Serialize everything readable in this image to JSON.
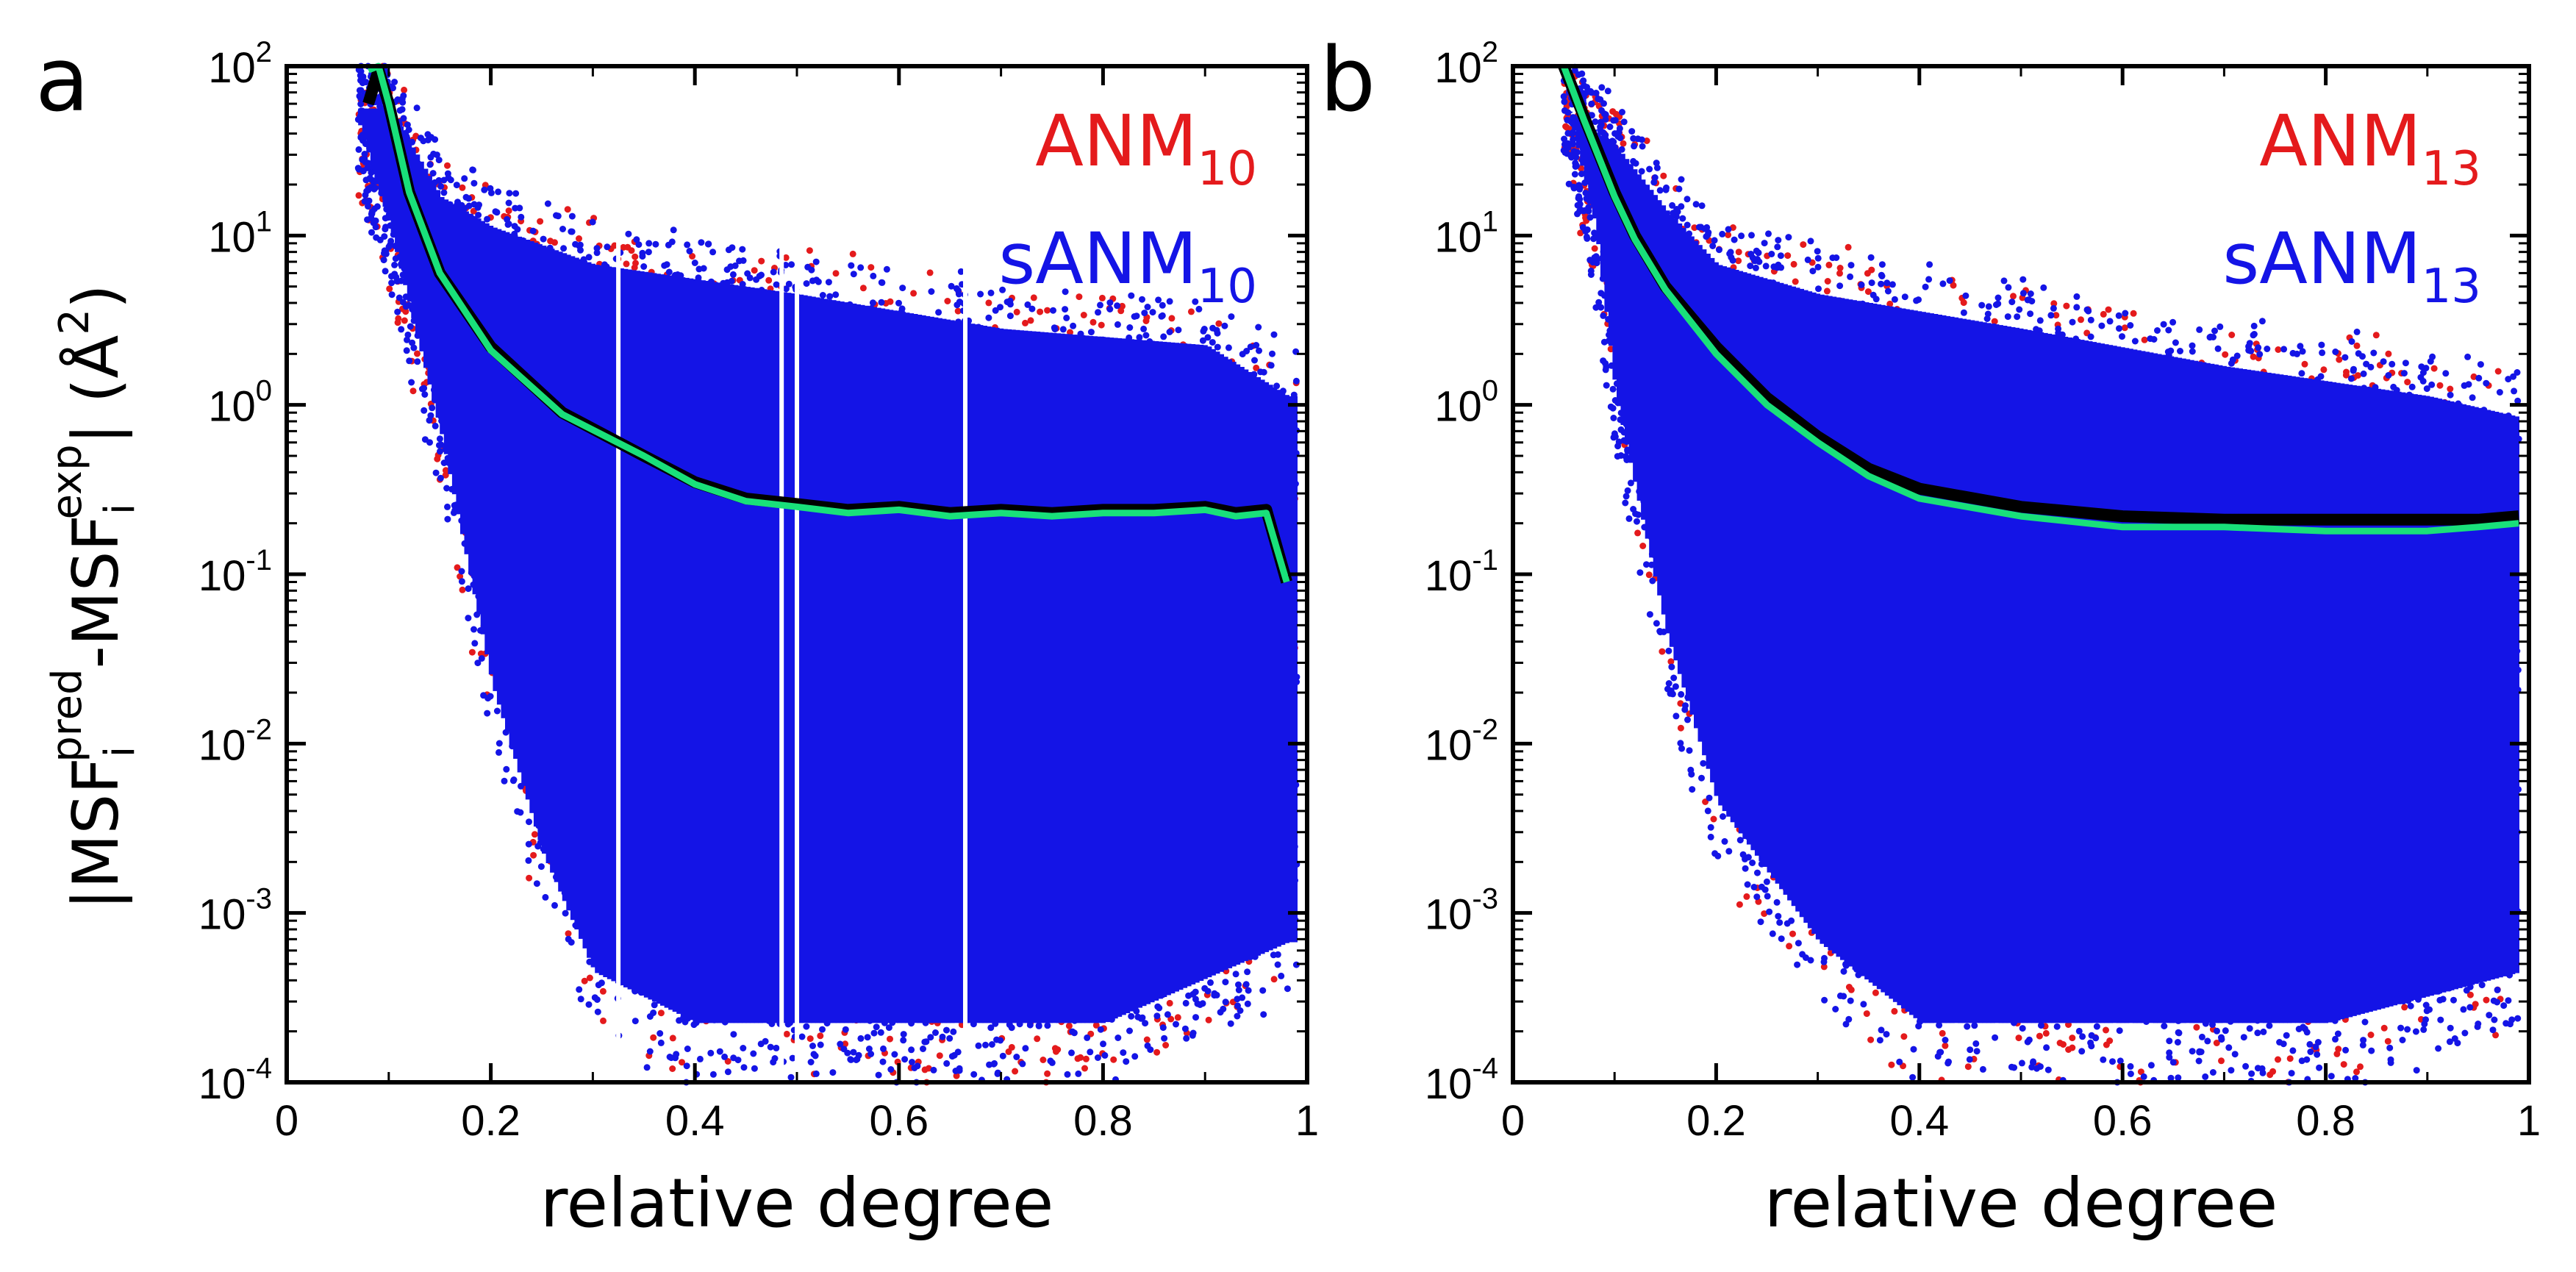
{
  "figure": {
    "ylabel": "|MSF_i^pred - MSF_i^exp| (Å²)",
    "ylabel_parts": {
      "bar_open": "|MSF",
      "sub_i1": "i",
      "sup_pred": "pred",
      "dash": "-MSF",
      "sub_i2": "i",
      "sup_exp": "exp",
      "bar_close": "| (Å",
      "sup_2": "2",
      "close": ")"
    },
    "colors": {
      "anm": "#e41a1c",
      "sanm": "#1414e6",
      "anm_mean": "#000000",
      "sanm_mean": "#19e07a"
    }
  },
  "chart_data": [
    {
      "type": "scatter",
      "panel": "a",
      "title": "",
      "xlabel": "relative degree",
      "ylabel": "|MSF_i^pred - MSF_i^exp| (Å²)",
      "xlim": [
        0,
        1
      ],
      "ylim": [
        0.0001,
        100
      ],
      "yscale": "log",
      "x_ticks": [
        "0",
        "0.2",
        "0.4",
        "0.6",
        "0.8",
        "1"
      ],
      "y_ticks": [
        {
          "base": "10",
          "exp": "2"
        },
        {
          "base": "10",
          "exp": "1"
        },
        {
          "base": "10",
          "exp": "0"
        },
        {
          "base": "10",
          "exp": "-1"
        },
        {
          "base": "10",
          "exp": "-2"
        },
        {
          "base": "10",
          "exp": "-3"
        },
        {
          "base": "10",
          "exp": "-4"
        }
      ],
      "legend_position": "top-right",
      "legend": [
        {
          "label": "ANM",
          "sub": "10",
          "color": "#e41a1c"
        },
        {
          "label": "sANM",
          "sub": "10",
          "color": "#1414e6"
        }
      ],
      "scatter_model": {
        "x_range": [
          0.07,
          0.99
        ],
        "upper_envelope": [
          [
            0.07,
            100
          ],
          [
            0.1,
            100
          ],
          [
            0.15,
            30
          ],
          [
            0.2,
            20
          ],
          [
            0.3,
            12
          ],
          [
            0.5,
            8
          ],
          [
            0.7,
            5
          ],
          [
            0.9,
            4
          ],
          [
            0.98,
            2
          ]
        ],
        "lower_envelope": [
          [
            0.07,
            20
          ],
          [
            0.1,
            5
          ],
          [
            0.15,
            0.3
          ],
          [
            0.2,
            0.01
          ],
          [
            0.25,
            0.001
          ],
          [
            0.3,
            0.0002
          ],
          [
            0.4,
            0.0001
          ],
          [
            0.6,
            0.0001
          ],
          [
            0.8,
            0.0001
          ],
          [
            0.98,
            0.0003
          ]
        ],
        "gaps_x": [
          0.325,
          0.485,
          0.5,
          0.665
        ]
      },
      "series": [
        {
          "name": "ANM_10 mean",
          "color": "#000000",
          "x": [
            0.08,
            0.09,
            0.1,
            0.12,
            0.15,
            0.2,
            0.27,
            0.35,
            0.4,
            0.45,
            0.5,
            0.55,
            0.6,
            0.65,
            0.7,
            0.75,
            0.8,
            0.85,
            0.9,
            0.93,
            0.96,
            0.98
          ],
          "values": [
            60,
            95,
            60,
            18,
            6,
            2.2,
            0.9,
            0.5,
            0.35,
            0.28,
            0.26,
            0.24,
            0.25,
            0.23,
            0.24,
            0.23,
            0.24,
            0.24,
            0.25,
            0.23,
            0.24,
            0.09
          ]
        },
        {
          "name": "sANM_10 mean",
          "color": "#19e07a",
          "x": [
            0.08,
            0.09,
            0.1,
            0.12,
            0.15,
            0.2,
            0.27,
            0.35,
            0.4,
            0.45,
            0.5,
            0.55,
            0.6,
            0.65,
            0.7,
            0.75,
            0.8,
            0.85,
            0.9,
            0.93,
            0.96,
            0.98
          ],
          "values": [
            95,
            100,
            60,
            18,
            6,
            2.1,
            0.88,
            0.5,
            0.34,
            0.27,
            0.25,
            0.23,
            0.24,
            0.22,
            0.23,
            0.22,
            0.23,
            0.23,
            0.24,
            0.22,
            0.23,
            0.09
          ]
        }
      ]
    },
    {
      "type": "scatter",
      "panel": "b",
      "title": "",
      "xlabel": "relative degree",
      "ylabel": "",
      "xlim": [
        0,
        1
      ],
      "ylim": [
        0.0001,
        100
      ],
      "yscale": "log",
      "x_ticks": [
        "0",
        "0.2",
        "0.4",
        "0.6",
        "0.8",
        "1"
      ],
      "y_ticks": [
        {
          "base": "10",
          "exp": "2"
        },
        {
          "base": "10",
          "exp": "1"
        },
        {
          "base": "10",
          "exp": "0"
        },
        {
          "base": "10",
          "exp": "-1"
        },
        {
          "base": "10",
          "exp": "-2"
        },
        {
          "base": "10",
          "exp": "-3"
        },
        {
          "base": "10",
          "exp": "-4"
        }
      ],
      "legend_position": "top-right",
      "legend": [
        {
          "label": "ANM",
          "sub": "13",
          "color": "#e41a1c"
        },
        {
          "label": "sANM",
          "sub": "13",
          "color": "#1414e6"
        }
      ],
      "scatter_model": {
        "x_range": [
          0.05,
          0.99
        ],
        "upper_envelope": [
          [
            0.05,
            100
          ],
          [
            0.1,
            60
          ],
          [
            0.15,
            25
          ],
          [
            0.2,
            12
          ],
          [
            0.3,
            8
          ],
          [
            0.5,
            5
          ],
          [
            0.7,
            3
          ],
          [
            0.9,
            2
          ],
          [
            0.99,
            1.5
          ]
        ],
        "lower_envelope": [
          [
            0.05,
            30
          ],
          [
            0.08,
            5
          ],
          [
            0.1,
            0.5
          ],
          [
            0.15,
            0.02
          ],
          [
            0.2,
            0.002
          ],
          [
            0.3,
            0.0003
          ],
          [
            0.4,
            0.0001
          ],
          [
            0.6,
            0.0001
          ],
          [
            0.8,
            0.0001
          ],
          [
            0.99,
            0.0002
          ]
        ],
        "gaps_x": []
      },
      "series": [
        {
          "name": "ANM_13 mean",
          "color": "#000000",
          "x": [
            0.05,
            0.07,
            0.1,
            0.12,
            0.15,
            0.2,
            0.25,
            0.3,
            0.35,
            0.4,
            0.5,
            0.6,
            0.7,
            0.8,
            0.9,
            0.95,
            0.99
          ],
          "values": [
            100,
            50,
            18,
            10,
            5,
            2.2,
            1.1,
            0.65,
            0.42,
            0.32,
            0.25,
            0.22,
            0.21,
            0.21,
            0.21,
            0.21,
            0.22
          ]
        },
        {
          "name": "sANM_13 mean",
          "color": "#19e07a",
          "x": [
            0.05,
            0.07,
            0.1,
            0.12,
            0.15,
            0.2,
            0.25,
            0.3,
            0.35,
            0.4,
            0.5,
            0.6,
            0.7,
            0.8,
            0.9,
            0.95,
            0.99
          ],
          "values": [
            100,
            48,
            17,
            9.5,
            4.8,
            2.0,
            1.0,
            0.6,
            0.38,
            0.28,
            0.22,
            0.19,
            0.19,
            0.18,
            0.18,
            0.19,
            0.2
          ]
        }
      ]
    }
  ]
}
